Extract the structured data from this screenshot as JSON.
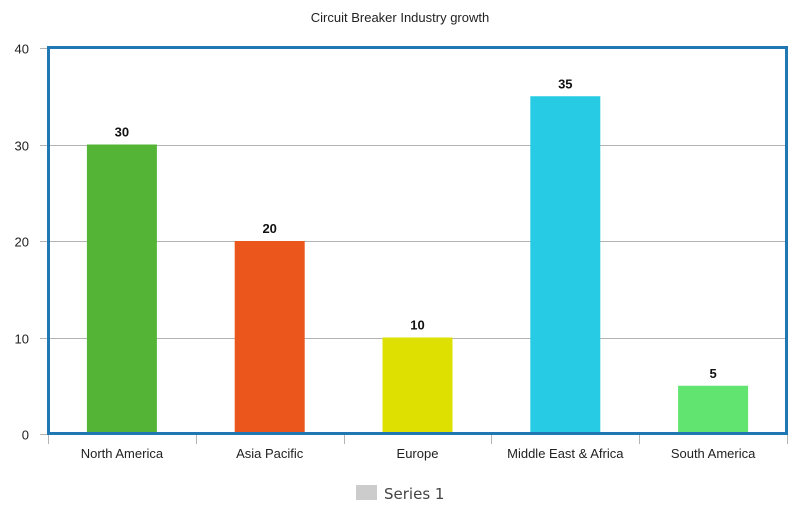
{
  "chart_data": {
    "type": "bar",
    "title": "Circuit Breaker Industry growth",
    "categories": [
      "North America",
      "Asia Pacific",
      "Europe",
      "Middle East & Africa",
      "South America"
    ],
    "series": [
      {
        "name": "Series 1",
        "values": [
          30,
          20,
          10,
          35,
          5
        ]
      }
    ],
    "bar_colors": [
      "#54b435",
      "#ea561c",
      "#dde000",
      "#27cce4",
      "#62e470"
    ],
    "ylim": [
      0,
      40
    ],
    "yticks": [
      0,
      10,
      20,
      30,
      40
    ],
    "grid": true,
    "legend": "bottom-center",
    "legend_color": "#cccccc",
    "frame_color": "#1f77b4"
  }
}
